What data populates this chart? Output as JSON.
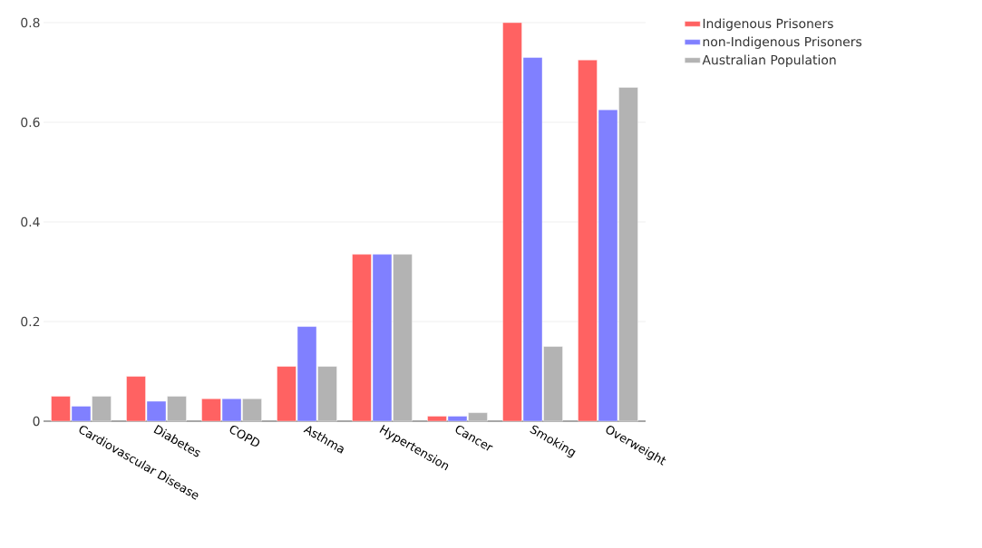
{
  "chart_data": {
    "type": "bar",
    "categories": [
      "Cardiovascular Disease",
      "Diabetes",
      "COPD",
      "Asthma",
      "Hypertension",
      "Cancer",
      "Smoking",
      "Overweight"
    ],
    "series": [
      {
        "name": "Indigenous Prisoners",
        "color": "#ff6262",
        "values": [
          0.05,
          0.09,
          0.045,
          0.11,
          0.335,
          0.01,
          0.8,
          0.725
        ]
      },
      {
        "name": "non-Indigenous Prisoners",
        "color": "#8080ff",
        "values": [
          0.03,
          0.04,
          0.045,
          0.19,
          0.335,
          0.01,
          0.73,
          0.625
        ]
      },
      {
        "name": "Australian Population",
        "color": "#b3b3b3",
        "values": [
          0.05,
          0.05,
          0.045,
          0.11,
          0.335,
          0.017,
          0.15,
          0.67
        ]
      }
    ],
    "ylim": [
      0,
      0.8
    ],
    "yticks": [
      0,
      0.2,
      0.4,
      0.6,
      0.8
    ],
    "grid": "y",
    "legend": "top right"
  }
}
